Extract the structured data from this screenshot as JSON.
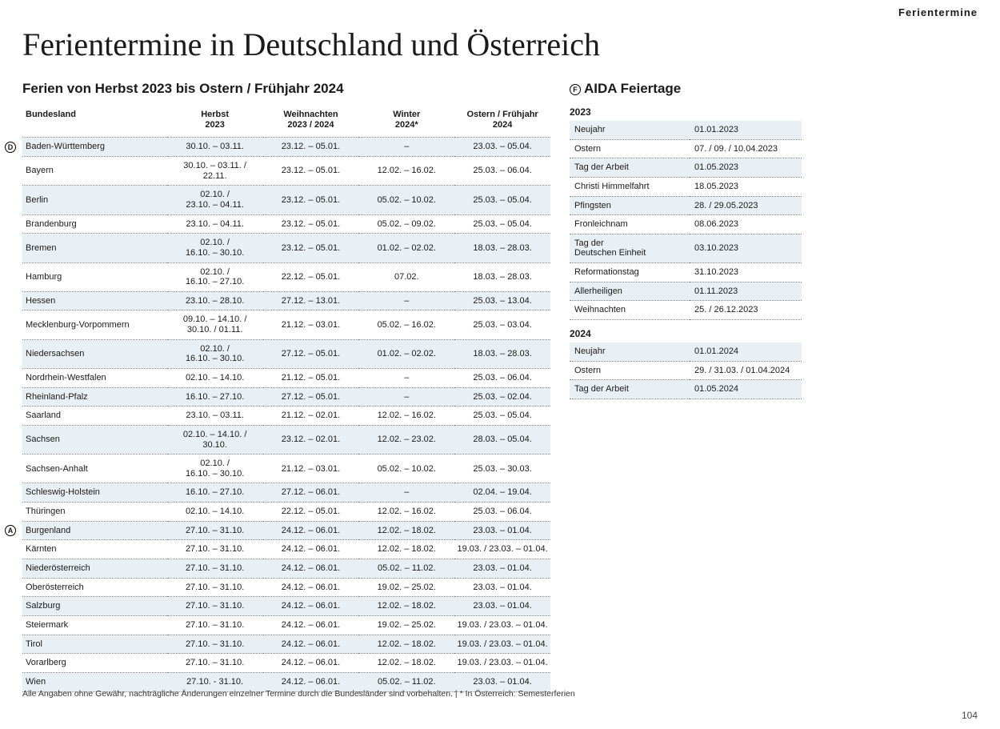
{
  "topright_label": "Ferientermine",
  "page_number": "104",
  "main_title": "Ferientermine in Deutschland und Österreich",
  "left_subtitle": "Ferien von Herbst 2023 bis Ostern / Frühjahr 2024",
  "right_subtitle": "AIDA Feiertage",
  "right_marker": "F",
  "footnote": "Alle Angaben ohne Gewähr, nachträgliche Änderungen einzelner Termine durch die Bundesländer sind vorbehalten. | * In Österreich: Semesterferien",
  "colors": {
    "shade_bg": "#e8f0f5",
    "border_dotted": "#888888",
    "text": "#1a1a1a"
  },
  "table": {
    "headers": [
      "Bundesland",
      "Herbst\n2023",
      "Weihnachten\n2023 / 2024",
      "Winter\n2024*",
      "Ostern / Frühjahr\n2024"
    ],
    "rows": [
      {
        "marker": "D",
        "shade": true,
        "cells": [
          "Baden-Württemberg",
          "30.10. – 03.11.",
          "23.12. – 05.01.",
          "–",
          "23.03. – 05.04."
        ]
      },
      {
        "shade": false,
        "cells": [
          "Bayern",
          "30.10. – 03.11. /\n22.11.",
          "23.12. – 05.01.",
          "12.02. – 16.02.",
          "25.03. – 06.04."
        ]
      },
      {
        "shade": true,
        "cells": [
          "Berlin",
          "02.10. /\n23.10. – 04.11.",
          "23.12. – 05.01.",
          "05.02. – 10.02.",
          "25.03. – 05.04."
        ]
      },
      {
        "shade": false,
        "cells": [
          "Brandenburg",
          "23.10. – 04.11.",
          "23.12. – 05.01.",
          "05.02. – 09.02.",
          "25.03. – 05.04."
        ]
      },
      {
        "shade": true,
        "cells": [
          "Bremen",
          "02.10. /\n16.10. – 30.10.",
          "23.12. – 05.01.",
          "01.02. – 02.02.",
          "18.03. – 28.03."
        ]
      },
      {
        "shade": false,
        "cells": [
          "Hamburg",
          "02.10. /\n16.10. – 27.10.",
          "22.12. – 05.01.",
          "07.02.",
          "18.03. – 28.03."
        ]
      },
      {
        "shade": true,
        "cells": [
          "Hessen",
          "23.10. – 28.10.",
          "27.12. – 13.01.",
          "–",
          "25.03. – 13.04."
        ]
      },
      {
        "shade": false,
        "cells": [
          "Mecklenburg-Vorpommern",
          "09.10. – 14.10. /\n30.10. / 01.11.",
          "21.12. – 03.01.",
          "05.02. – 16.02.",
          "25.03. – 03.04."
        ]
      },
      {
        "shade": true,
        "cells": [
          "Niedersachsen",
          "02.10. /\n16.10. – 30.10.",
          "27.12. – 05.01.",
          "01.02. – 02.02.",
          "18.03. – 28.03."
        ]
      },
      {
        "shade": false,
        "cells": [
          "Nordrhein-Westfalen",
          "02.10. – 14.10.",
          "21.12. – 05.01.",
          "–",
          "25.03. – 06.04."
        ]
      },
      {
        "shade": true,
        "cells": [
          "Rheinland-Pfalz",
          "16.10. – 27.10.",
          "27.12. – 05.01.",
          "–",
          "25.03. – 02.04."
        ]
      },
      {
        "shade": false,
        "cells": [
          "Saarland",
          "23.10. – 03.11.",
          "21.12. – 02.01.",
          "12.02. – 16.02.",
          "25.03. – 05.04."
        ]
      },
      {
        "shade": true,
        "cells": [
          "Sachsen",
          "02.10. – 14.10. /\n30.10.",
          "23.12. – 02.01.",
          "12.02. – 23.02.",
          "28.03. – 05.04."
        ]
      },
      {
        "shade": false,
        "cells": [
          "Sachsen-Anhalt",
          "02.10. /\n16.10. – 30.10.",
          "21.12. – 03.01.",
          "05.02. – 10.02.",
          "25.03. – 30.03."
        ]
      },
      {
        "shade": true,
        "cells": [
          "Schleswig-Holstein",
          "16.10. – 27.10.",
          "27.12. – 06.01.",
          "–",
          "02.04. – 19.04."
        ]
      },
      {
        "shade": false,
        "cells": [
          "Thüringen",
          "02.10. – 14.10.",
          "22.12. – 05.01.",
          "12.02. – 16.02.",
          "25.03. – 06.04."
        ]
      },
      {
        "marker": "A",
        "shade": true,
        "cells": [
          "Burgenland",
          "27.10. – 31.10.",
          "24.12. – 06.01.",
          "12.02. – 18.02.",
          "23.03. – 01.04."
        ]
      },
      {
        "shade": false,
        "cells": [
          "Kärnten",
          "27.10. – 31.10.",
          "24.12. – 06.01.",
          "12.02. – 18.02.",
          "19.03. / 23.03. – 01.04."
        ]
      },
      {
        "shade": true,
        "cells": [
          "Niederösterreich",
          "27.10. – 31.10.",
          "24.12. – 06.01.",
          "05.02. – 11.02.",
          "23.03. – 01.04."
        ]
      },
      {
        "shade": false,
        "cells": [
          "Oberösterreich",
          "27.10. – 31.10.",
          "24.12. – 06.01.",
          "19.02. – 25.02.",
          "23.03. – 01.04."
        ]
      },
      {
        "shade": true,
        "cells": [
          "Salzburg",
          "27.10. – 31.10.",
          "24.12. – 06.01.",
          "12.02. – 18.02.",
          "23.03. – 01.04."
        ]
      },
      {
        "shade": false,
        "cells": [
          "Steiermark",
          "27.10. – 31.10.",
          "24.12. – 06.01.",
          "19.02. – 25.02.",
          "19.03. / 23.03. – 01.04."
        ]
      },
      {
        "shade": true,
        "cells": [
          "Tirol",
          "27.10. – 31.10.",
          "24.12. – 06.01.",
          "12.02. – 18.02.",
          "19.03. / 23.03. – 01.04."
        ]
      },
      {
        "shade": false,
        "cells": [
          "Vorarlberg",
          "27.10. – 31.10.",
          "24.12. – 06.01.",
          "12.02. – 18.02.",
          "19.03. / 23.03. – 01.04."
        ]
      },
      {
        "shade": true,
        "cells": [
          "Wien",
          "27.10. - 31.10.",
          "24.12. – 06.01.",
          "05.02. – 11.02.",
          "23.03. – 01.04."
        ]
      }
    ]
  },
  "holidays": {
    "groups": [
      {
        "year": "2023",
        "rows": [
          {
            "shade": true,
            "name": "Neujahr",
            "date": "01.01.2023"
          },
          {
            "shade": false,
            "name": "Ostern",
            "date": "07. / 09. / 10.04.2023"
          },
          {
            "shade": true,
            "name": "Tag der Arbeit",
            "date": "01.05.2023"
          },
          {
            "shade": false,
            "name": "Christi Himmelfahrt",
            "date": "18.05.2023"
          },
          {
            "shade": true,
            "name": "Pfingsten",
            "date": "28. / 29.05.2023"
          },
          {
            "shade": false,
            "name": "Fronleichnam",
            "date": "08.06.2023"
          },
          {
            "shade": true,
            "name": "Tag der\nDeutschen Einheit",
            "date": "03.10.2023"
          },
          {
            "shade": false,
            "name": "Reformationstag",
            "date": "31.10.2023"
          },
          {
            "shade": true,
            "name": "Allerheiligen",
            "date": "01.11.2023"
          },
          {
            "shade": false,
            "name": "Weihnachten",
            "date": "25. / 26.12.2023"
          }
        ]
      },
      {
        "year": "2024",
        "rows": [
          {
            "shade": true,
            "name": "Neujahr",
            "date": "01.01.2024"
          },
          {
            "shade": false,
            "name": "Ostern",
            "date": "29. / 31.03. / 01.04.2024"
          },
          {
            "shade": true,
            "name": "Tag der Arbeit",
            "date": "01.05.2024"
          }
        ]
      }
    ]
  }
}
